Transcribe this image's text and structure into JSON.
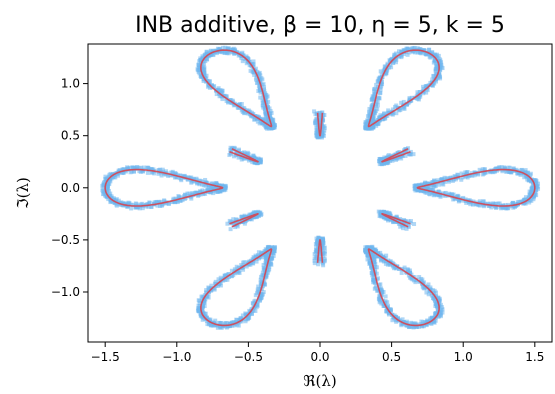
{
  "chart_data": {
    "type": "scatter",
    "title": "INB additive, β = 10, η = 5, k = 5",
    "xlabel": "ℜ(λ)",
    "ylabel": "ℑ(λ)",
    "xlim": [
      -1.62,
      1.62
    ],
    "ylim": [
      -1.48,
      1.38
    ],
    "xticks": [
      -1.5,
      -1.0,
      -0.5,
      0.0,
      0.5,
      1.0,
      1.5
    ],
    "xtick_labels": [
      "−1.5",
      "−1.0",
      "−0.5",
      "0.0",
      "0.5",
      "1.0",
      "1.5"
    ],
    "yticks": [
      -1.0,
      -0.5,
      0.0,
      0.5,
      1.0
    ],
    "ytick_labels": [
      "−1.0",
      "−0.5",
      "0.0",
      "0.5",
      "1.0"
    ],
    "grid": false,
    "curve": {
      "shape": "six-lobed rosette: six teardrop loops centred on the unit circle at angles 0°, 60°, 120°, 180°, 240°, 300°",
      "loop_count": 6,
      "loop_tip_radius": 1.5,
      "inner_radius": 0.5
    },
    "series": [
      {
        "kind": "eigenvalue scatter",
        "color": "#6fb6ee"
      },
      {
        "kind": "theoretical boundary curve",
        "color": "#d64550"
      }
    ]
  }
}
